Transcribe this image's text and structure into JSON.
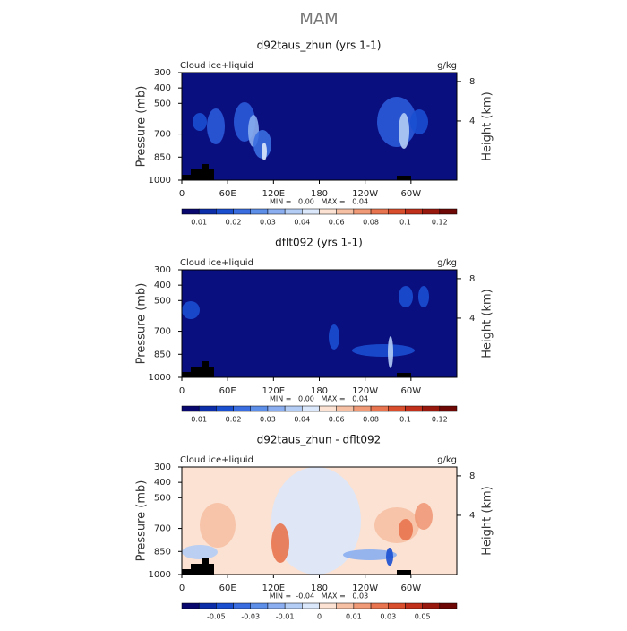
{
  "title": "MAM",
  "chart_data": [
    {
      "type": "contour",
      "title": "d92taus_zhun (yrs 1-1)",
      "left_label": "Cloud ice+liquid",
      "right_label": "g/kg",
      "ylabel": "Pressure (mb)",
      "y2label": "Height (km)",
      "ylim": [
        1000,
        300
      ],
      "yticks": [
        300,
        400,
        500,
        700,
        850,
        1000
      ],
      "y2lim": [
        -2,
        8.9
      ],
      "y2ticks": [
        4,
        8
      ],
      "xlim": [
        0,
        360
      ],
      "xticks": [
        0,
        {
          "value": 60,
          "label": "60E"
        },
        {
          "value": 120,
          "label": "120E"
        },
        180,
        {
          "value": 240,
          "label": "120W"
        },
        {
          "value": 300,
          "label": "60W"
        }
      ],
      "stats": "MIN =   0.00   MAX =   0.04",
      "colorbar": {
        "levels": [
          0.01,
          0.02,
          0.03,
          0.04,
          0.06,
          0.08,
          0.1,
          0.12
        ],
        "colors": [
          "#08086e",
          "#0c2ea8",
          "#1a4fd0",
          "#3a6ee0",
          "#5d8ee8",
          "#8aaef0",
          "#b4cdf5",
          "#dbe7fa",
          "#fbe2d2",
          "#f6c0a4",
          "#f09a78",
          "#e8744f",
          "#d94f2e",
          "#c0301a",
          "#98180e",
          "#6e0806"
        ]
      }
    },
    {
      "type": "contour",
      "title": "dflt092 (yrs 1-1)",
      "left_label": "Cloud ice+liquid",
      "right_label": "g/kg",
      "ylabel": "Pressure (mb)",
      "y2label": "Height (km)",
      "ylim": [
        1000,
        300
      ],
      "yticks": [
        300,
        400,
        500,
        700,
        850,
        1000
      ],
      "y2lim": [
        -2,
        8.9
      ],
      "y2ticks": [
        4,
        8
      ],
      "xlim": [
        0,
        360
      ],
      "xticks": [
        0,
        {
          "value": 60,
          "label": "60E"
        },
        {
          "value": 120,
          "label": "120E"
        },
        180,
        {
          "value": 240,
          "label": "120W"
        },
        {
          "value": 300,
          "label": "60W"
        }
      ],
      "stats": "MIN =   0.00   MAX =   0.04",
      "colorbar": {
        "levels": [
          0.01,
          0.02,
          0.03,
          0.04,
          0.06,
          0.08,
          0.1,
          0.12
        ],
        "colors": [
          "#08086e",
          "#0c2ea8",
          "#1a4fd0",
          "#3a6ee0",
          "#5d8ee8",
          "#8aaef0",
          "#b4cdf5",
          "#dbe7fa",
          "#fbe2d2",
          "#f6c0a4",
          "#f09a78",
          "#e8744f",
          "#d94f2e",
          "#c0301a",
          "#98180e",
          "#6e0806"
        ]
      }
    },
    {
      "type": "contour",
      "title": "d92taus_zhun - dflt092",
      "left_label": "Cloud ice+liquid",
      "right_label": "g/kg",
      "ylabel": "Pressure (mb)",
      "y2label": "Height (km)",
      "ylim": [
        1000,
        300
      ],
      "yticks": [
        300,
        400,
        500,
        700,
        850,
        1000
      ],
      "y2lim": [
        -2,
        8.9
      ],
      "y2ticks": [
        4,
        8
      ],
      "xlim": [
        0,
        360
      ],
      "xticks": [
        0,
        {
          "value": 60,
          "label": "60E"
        },
        {
          "value": 120,
          "label": "120E"
        },
        180,
        {
          "value": 240,
          "label": "120W"
        },
        {
          "value": 300,
          "label": "60W"
        }
      ],
      "stats": "MIN =  -0.04   MAX =   0.03",
      "colorbar": {
        "levels": [
          -0.05,
          -0.03,
          -0.01,
          0,
          0.01,
          0.03,
          0.05
        ],
        "colors": [
          "#08086e",
          "#0c2ea8",
          "#1a4fd0",
          "#3a6ee0",
          "#5d8ee8",
          "#8aaef0",
          "#b4cdf5",
          "#dbe7fa",
          "#fbe2d2",
          "#f6c0a4",
          "#f09a78",
          "#e8744f",
          "#d94f2e",
          "#c0301a",
          "#98180e",
          "#6e0806"
        ]
      }
    }
  ]
}
